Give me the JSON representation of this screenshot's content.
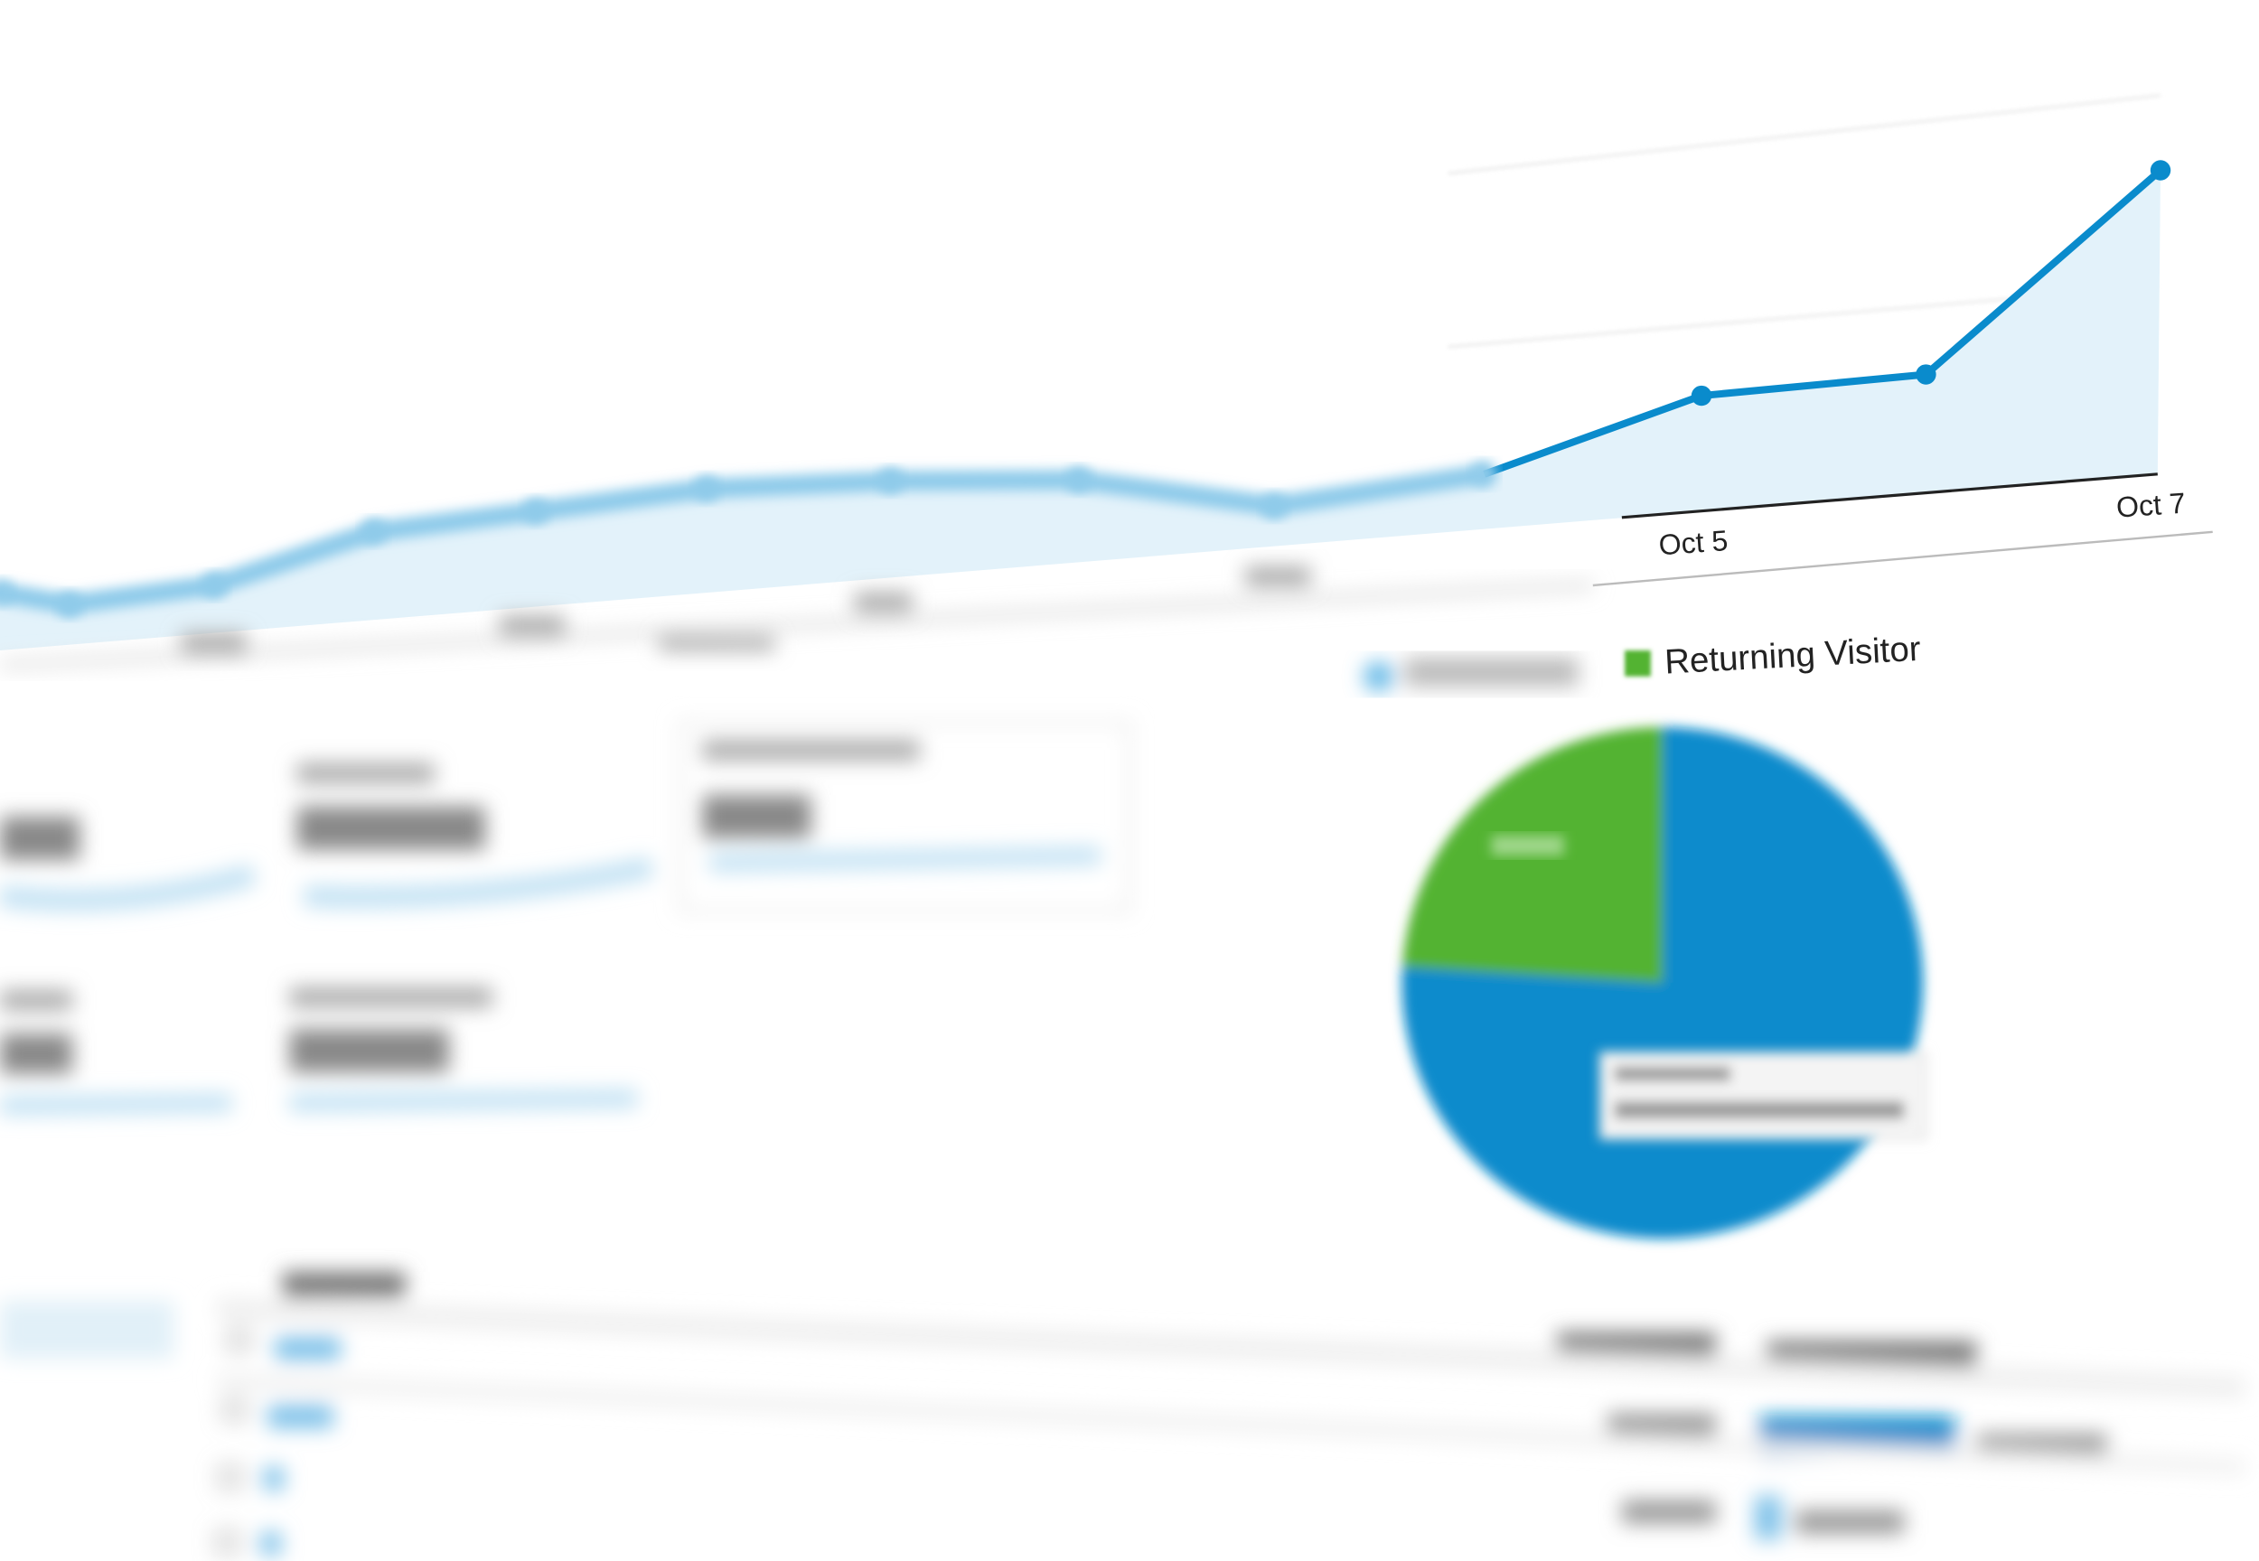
{
  "chart_data": [
    {
      "type": "area",
      "x_labels_visible": [
        "Oct 5",
        "Oct 7"
      ],
      "series": [
        {
          "values": [
            40,
            28,
            33,
            61,
            66,
            72,
            67,
            57,
            28,
            38,
            80,
            82,
            210
          ]
        }
      ],
      "point_labels_x": {
        "10": "Oct 5",
        "12": "Oct 7"
      },
      "grid": true,
      "colors": {
        "line": "#0a8bcc",
        "fill": "#e3f2fa"
      }
    },
    {
      "type": "pie",
      "legend": [
        "",
        "Returning Visitor"
      ],
      "legend_placement": "top",
      "values": [
        76,
        24
      ],
      "colors": [
        "#0a8bcc",
        "#52b332"
      ]
    }
  ],
  "legend": {
    "returning": "Returning Visitor"
  },
  "axis": {
    "oct5": "Oct 5",
    "oct7": "Oct 7"
  }
}
